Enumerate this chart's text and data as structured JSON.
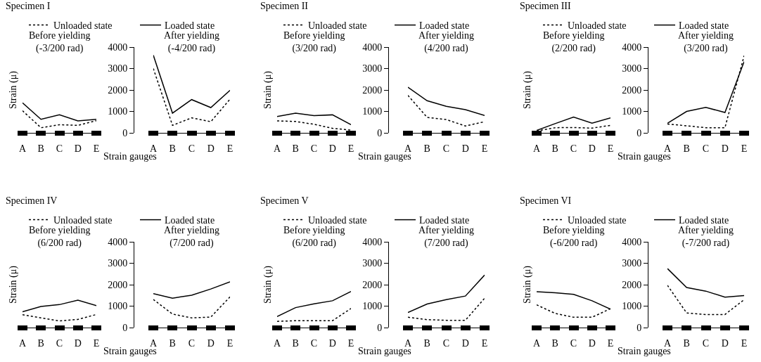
{
  "chart_data": [
    {
      "type": "line",
      "title": "Specimen I",
      "subtitle": "Before yielding\n(-3/200 rad)",
      "xlabel": "Strain gauges",
      "ylabel": "Strain (μ)",
      "categories": [
        "A",
        "B",
        "C",
        "D",
        "E"
      ],
      "series": [
        {
          "name": "Unloaded state",
          "color": "#000000",
          "line_style": "dotted",
          "values": [
            1030,
            240,
            380,
            350,
            570
          ]
        },
        {
          "name": "Loaded state",
          "color": "#000000",
          "line_style": "solid",
          "values": [
            1400,
            630,
            840,
            560,
            630
          ]
        }
      ],
      "ylim": [
        0,
        4000
      ],
      "yticks": [
        0,
        1000,
        2000,
        3000,
        4000
      ],
      "tick_labels": "x",
      "legend": "top"
    },
    {
      "type": "line",
      "subtitle": "After yielding\n(-4/200 rad)",
      "categories": [
        "A",
        "B",
        "C",
        "D",
        "E"
      ],
      "series": [
        {
          "color": "#000000",
          "line_style": "dotted",
          "values": [
            3000,
            350,
            700,
            520,
            1570
          ]
        },
        {
          "color": "#000000",
          "line_style": "solid",
          "values": [
            3620,
            920,
            1550,
            1180,
            1980
          ]
        }
      ],
      "ylim": [
        0,
        4000
      ],
      "yticks": [
        0,
        1000,
        2000,
        3000,
        4000
      ]
    },
    {
      "type": "line",
      "title": "Specimen II",
      "subtitle": "Before yielding\n(3/200 rad)",
      "xlabel": "Strain gauges",
      "ylabel": "Strain (μ)",
      "categories": [
        "A",
        "B",
        "C",
        "D",
        "E"
      ],
      "series": [
        {
          "name": "Unloaded state",
          "color": "#000000",
          "line_style": "dotted",
          "values": [
            560,
            530,
            400,
            210,
            130
          ]
        },
        {
          "name": "Loaded state",
          "color": "#000000",
          "line_style": "solid",
          "values": [
            760,
            920,
            800,
            840,
            380
          ]
        }
      ],
      "ylim": [
        0,
        4000
      ],
      "yticks": [
        0,
        1000,
        2000,
        3000,
        4000
      ],
      "tick_labels": "x",
      "legend": "top"
    },
    {
      "type": "line",
      "subtitle": "After yielding\n(4/200 rad)",
      "categories": [
        "A",
        "B",
        "C",
        "D",
        "E"
      ],
      "series": [
        {
          "color": "#000000",
          "line_style": "dotted",
          "values": [
            1750,
            720,
            620,
            320,
            520
          ]
        },
        {
          "color": "#000000",
          "line_style": "solid",
          "values": [
            2130,
            1500,
            1240,
            1080,
            810
          ]
        }
      ],
      "ylim": [
        0,
        4000
      ],
      "yticks": [
        0,
        1000,
        2000,
        3000,
        4000
      ]
    },
    {
      "type": "line",
      "title": "Specimen III",
      "subtitle": "Before yielding\n(2/200 rad)",
      "xlabel": "Strain gauges",
      "ylabel": "Strain (μ)",
      "categories": [
        "A",
        "B",
        "C",
        "D",
        "E"
      ],
      "series": [
        {
          "name": "Unloaded state",
          "color": "#000000",
          "line_style": "dotted",
          "values": [
            90,
            240,
            250,
            220,
            350
          ]
        },
        {
          "name": "Loaded state",
          "color": "#000000",
          "line_style": "solid",
          "values": [
            110,
            430,
            740,
            450,
            700
          ]
        }
      ],
      "ylim": [
        0,
        4000
      ],
      "yticks": [
        0,
        1000,
        2000,
        3000,
        4000
      ],
      "tick_labels": "x",
      "legend": "top"
    },
    {
      "type": "line",
      "subtitle": "After yielding\n(3/200 rad)",
      "categories": [
        "A",
        "B",
        "C",
        "D",
        "E"
      ],
      "series": [
        {
          "color": "#000000",
          "line_style": "dotted",
          "values": [
            410,
            330,
            240,
            240,
            3600
          ]
        },
        {
          "color": "#000000",
          "line_style": "solid",
          "values": [
            450,
            1000,
            1190,
            950,
            3320
          ]
        }
      ],
      "ylim": [
        0,
        4000
      ],
      "yticks": [
        0,
        1000,
        2000,
        3000,
        4000
      ]
    },
    {
      "type": "line",
      "title": "Specimen IV",
      "subtitle": "Before yielding\n(6/200 rad)",
      "xlabel": "Strain gauges",
      "ylabel": "Strain (μ)",
      "categories": [
        "A",
        "B",
        "C",
        "D",
        "E"
      ],
      "series": [
        {
          "name": "Unloaded state",
          "color": "#000000",
          "line_style": "dotted",
          "values": [
            600,
            450,
            310,
            380,
            610
          ]
        },
        {
          "name": "Loaded state",
          "color": "#000000",
          "line_style": "solid",
          "values": [
            740,
            980,
            1070,
            1280,
            1020
          ]
        }
      ],
      "ylim": [
        0,
        4000
      ],
      "yticks": [
        0,
        1000,
        2000,
        3000,
        4000
      ],
      "tick_labels": "x",
      "legend": "top"
    },
    {
      "type": "line",
      "subtitle": "After yielding\n(7/200 rad)",
      "categories": [
        "A",
        "B",
        "C",
        "D",
        "E"
      ],
      "series": [
        {
          "color": "#000000",
          "line_style": "dotted",
          "values": [
            1310,
            630,
            450,
            490,
            1430
          ]
        },
        {
          "color": "#000000",
          "line_style": "solid",
          "values": [
            1580,
            1370,
            1510,
            1800,
            2130
          ]
        }
      ],
      "ylim": [
        0,
        4000
      ],
      "yticks": [
        0,
        1000,
        2000,
        3000,
        4000
      ]
    },
    {
      "type": "line",
      "title": "Specimen V",
      "subtitle": "Before yielding\n(6/200 rad)",
      "xlabel": "Strain gauges",
      "ylabel": "Strain (μ)",
      "categories": [
        "A",
        "B",
        "C",
        "D",
        "E"
      ],
      "series": [
        {
          "name": "Unloaded state",
          "color": "#000000",
          "line_style": "dotted",
          "values": [
            290,
            320,
            320,
            320,
            890
          ]
        },
        {
          "name": "Loaded state",
          "color": "#000000",
          "line_style": "solid",
          "values": [
            510,
            930,
            1110,
            1250,
            1680
          ]
        }
      ],
      "ylim": [
        0,
        4000
      ],
      "yticks": [
        0,
        1000,
        2000,
        3000,
        4000
      ],
      "tick_labels": "x",
      "legend": "top"
    },
    {
      "type": "line",
      "subtitle": "After yielding\n(7/200 rad)",
      "categories": [
        "A",
        "B",
        "C",
        "D",
        "E"
      ],
      "series": [
        {
          "color": "#000000",
          "line_style": "dotted",
          "values": [
            480,
            370,
            340,
            340,
            1370
          ]
        },
        {
          "color": "#000000",
          "line_style": "solid",
          "values": [
            700,
            1100,
            1300,
            1470,
            2450
          ]
        }
      ],
      "ylim": [
        0,
        4000
      ],
      "yticks": [
        0,
        1000,
        2000,
        3000,
        4000
      ]
    },
    {
      "type": "line",
      "title": "Specimen VI",
      "subtitle": "Before yielding\n(-6/200 rad)",
      "xlabel": "Strain gauges",
      "ylabel": "Strain (μ)",
      "categories": [
        "A",
        "B",
        "C",
        "D",
        "E"
      ],
      "series": [
        {
          "name": "Unloaded state",
          "color": "#000000",
          "line_style": "dotted",
          "values": [
            1060,
            660,
            480,
            480,
            880
          ]
        },
        {
          "name": "Loaded state",
          "color": "#000000",
          "line_style": "solid",
          "values": [
            1670,
            1620,
            1550,
            1250,
            860
          ]
        }
      ],
      "ylim": [
        0,
        4000
      ],
      "yticks": [
        0,
        1000,
        2000,
        3000,
        4000
      ],
      "tick_labels": "x",
      "legend": "top"
    },
    {
      "type": "line",
      "subtitle": "After yielding\n(-7/200 rad)",
      "categories": [
        "A",
        "B",
        "C",
        "D",
        "E"
      ],
      "series": [
        {
          "color": "#000000",
          "line_style": "dotted",
          "values": [
            1970,
            680,
            610,
            610,
            1300
          ]
        },
        {
          "color": "#000000",
          "line_style": "solid",
          "values": [
            2750,
            1870,
            1700,
            1420,
            1490
          ]
        }
      ],
      "ylim": [
        0,
        4000
      ],
      "yticks": [
        0,
        1000,
        2000,
        3000,
        4000
      ]
    }
  ]
}
